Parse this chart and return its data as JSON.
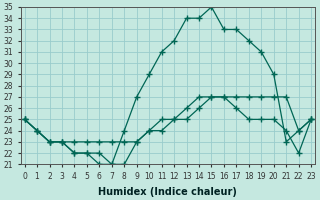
{
  "xlabel": "Humidex (Indice chaleur)",
  "bg_color": "#c5e8e0",
  "grid_color": "#99cccc",
  "line_color": "#006655",
  "x_hours": [
    0,
    1,
    2,
    3,
    4,
    5,
    6,
    7,
    8,
    9,
    10,
    11,
    12,
    13,
    14,
    15,
    16,
    17,
    18,
    19,
    20,
    21,
    22,
    23
  ],
  "y_max": [
    25,
    24,
    23,
    23,
    22,
    22,
    21,
    21,
    24,
    27,
    29,
    31,
    32,
    34,
    34,
    35,
    33,
    33,
    32,
    31,
    29,
    23,
    24,
    25
  ],
  "y_mean": [
    25,
    24,
    23,
    23,
    23,
    23,
    23,
    23,
    23,
    23,
    24,
    24,
    25,
    25,
    26,
    27,
    27,
    27,
    27,
    27,
    27,
    27,
    24,
    25
  ],
  "y_min": [
    25,
    24,
    23,
    23,
    22,
    22,
    22,
    21,
    21,
    23,
    24,
    25,
    25,
    26,
    27,
    27,
    27,
    26,
    25,
    25,
    25,
    24,
    22,
    25
  ],
  "ylim": [
    21,
    35
  ],
  "xlim": [
    0,
    23
  ],
  "ytick_min": 21,
  "ytick_max": 35
}
